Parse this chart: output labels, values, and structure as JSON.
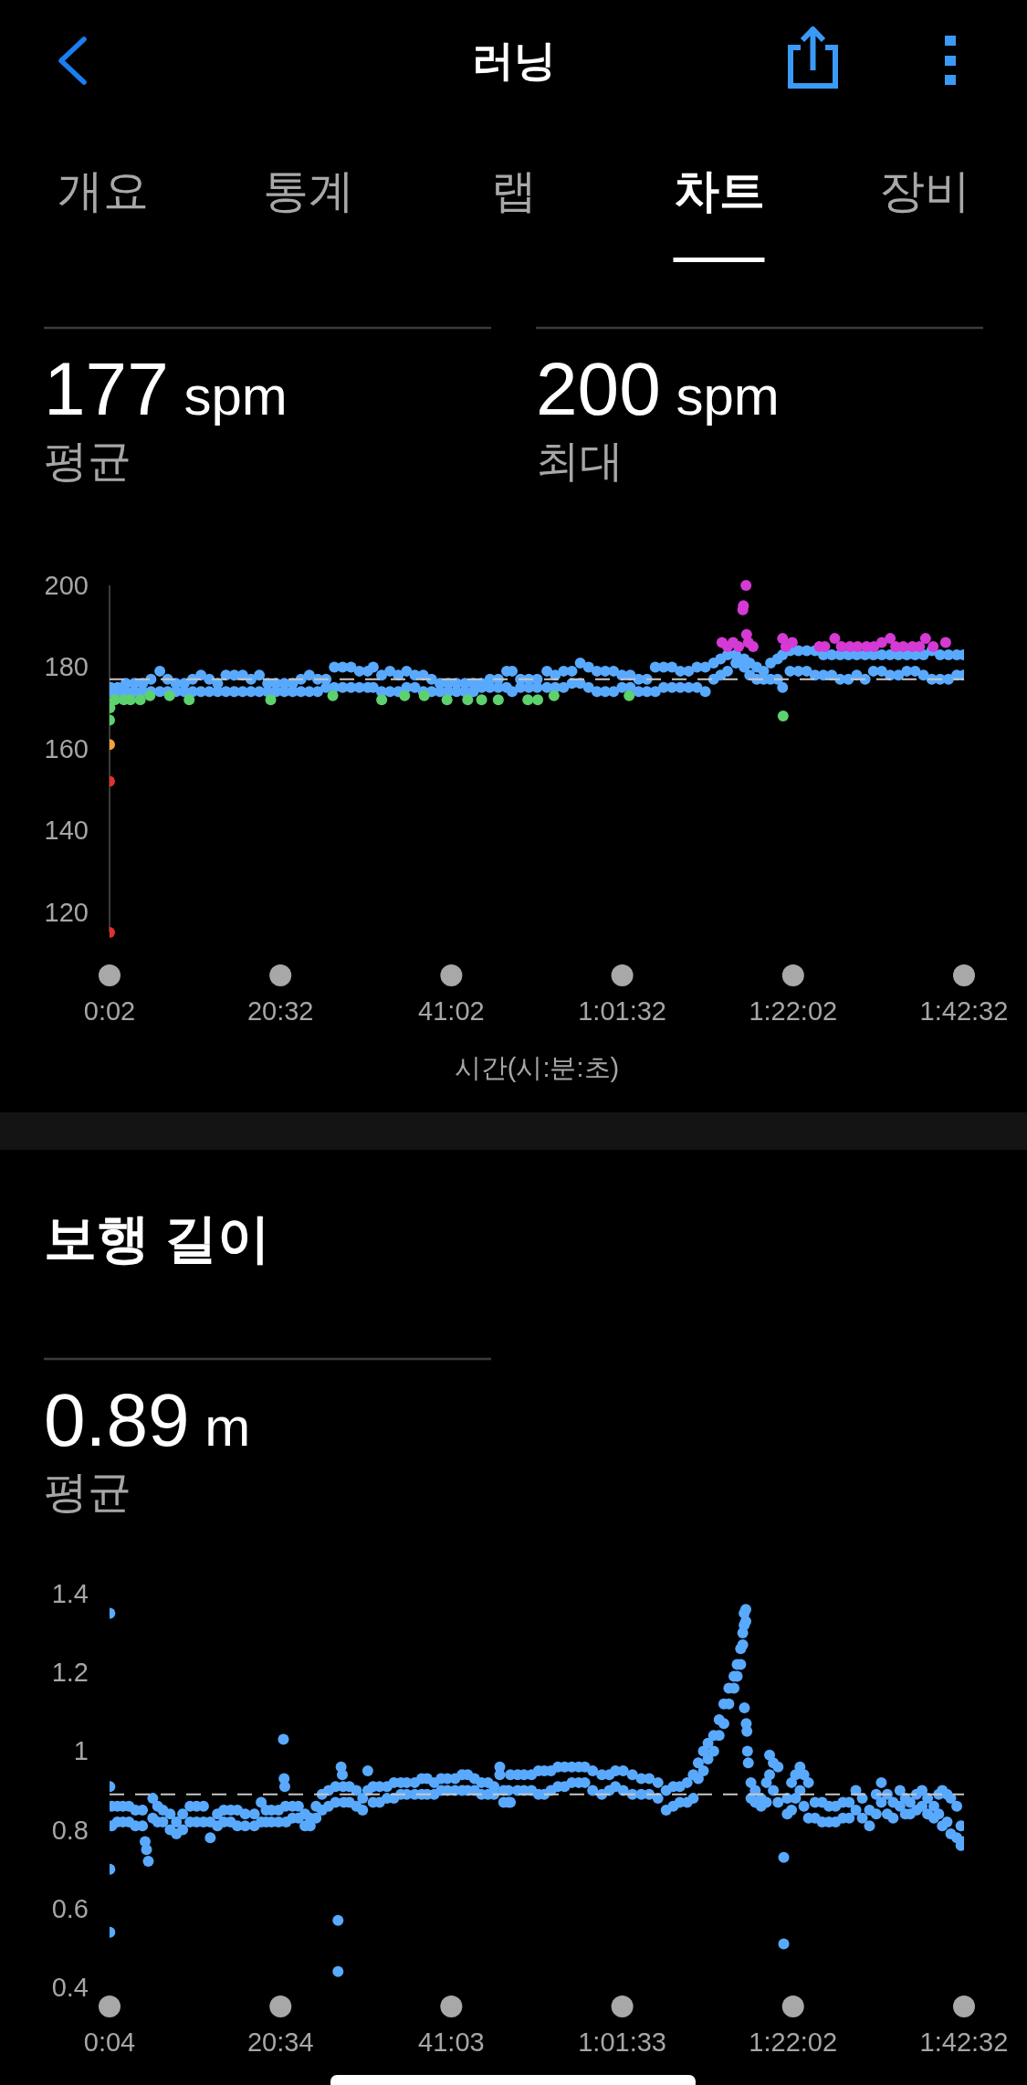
{
  "chart_data": [
    {
      "type": "other",
      "title": "러닝",
      "categories": [
        "개요",
        "통계",
        "랩",
        "차트",
        "장비"
      ],
      "colors": [
        "#a8a8a8",
        "#a8a8a8",
        "#a8a8a8",
        "#ffffff",
        "#a8a8a8"
      ]
    },
    {
      "type": "scatter",
      "xlabel": "시간(시:분:초)",
      "annotations": [
        "177 spm",
        "평균",
        "200 spm",
        "최대"
      ],
      "xlim": [
        2,
        6152
      ],
      "xticks": [
        {
          "value": 2,
          "label": "0:02"
        },
        {
          "value": 1232,
          "label": "20:32"
        },
        {
          "value": 2462,
          "label": "41:02"
        },
        {
          "value": 3692,
          "label": "1:01:32"
        },
        {
          "value": 4922,
          "label": "1:22:02"
        },
        {
          "value": 6152,
          "label": "1:42:32"
        }
      ],
      "ylim": [
        115,
        200
      ],
      "yticks": [
        120,
        140,
        160,
        180,
        200
      ],
      "marker": "circle",
      "ref_lines": [
        {
          "axis": "y",
          "value": 177,
          "color": "#c8c8c8",
          "line_style": "dashed"
        }
      ],
      "series": [
        {
          "color": "#e0312e",
          "x": [
            2,
            2
          ],
          "values": [
            152,
            115
          ]
        },
        {
          "color": "#f6a03c",
          "x": [
            2
          ],
          "values": [
            161
          ]
        },
        {
          "color": "#59aaff",
          "x": [
            10,
            10,
            60,
            60,
            120,
            120,
            180,
            180,
            240,
            240,
            300,
            300,
            364,
            364,
            420,
            420,
            480,
            480,
            540,
            540,
            600,
            600,
            660,
            660,
            720,
            720,
            780,
            780,
            840,
            840,
            900,
            900,
            960,
            960,
            1020,
            1020,
            1080,
            1080,
            1140,
            1140,
            1200,
            1200,
            1260,
            1260,
            1320,
            1320,
            1380,
            1380,
            1440,
            1440,
            1500,
            1500,
            1560,
            1560,
            1620,
            1620,
            1680,
            1680,
            1740,
            1740,
            1800,
            1800,
            1860,
            1860,
            1900,
            1900,
            1960,
            1960,
            2020,
            2020,
            2080,
            2080,
            2140,
            2140,
            2200,
            2200,
            2260,
            2260,
            2320,
            2320,
            2380,
            2380,
            2440,
            2440,
            2500,
            2500,
            2560,
            2560,
            2620,
            2620,
            2680,
            2680,
            2740,
            2740,
            2800,
            2800,
            2860,
            2860
          ],
          "values": [
            175,
            174,
            175,
            174,
            176,
            174,
            176,
            174,
            176,
            174,
            177,
            174,
            179,
            174,
            177,
            174,
            176,
            174,
            176,
            174,
            177,
            174,
            178,
            174,
            177,
            174,
            176,
            174,
            178,
            174,
            178,
            174,
            178,
            174,
            177,
            174,
            178,
            174,
            176,
            174,
            176,
            174,
            176,
            174,
            176,
            174,
            177,
            174,
            178,
            174,
            177,
            174,
            177,
            175,
            180,
            175,
            180,
            175,
            180,
            175,
            179,
            175,
            179,
            175,
            180,
            175,
            178,
            174,
            179,
            174,
            178,
            174,
            179,
            175,
            178,
            175,
            178,
            174,
            177,
            174,
            176,
            174,
            176,
            174,
            176,
            174,
            176,
            174,
            176,
            174,
            176,
            175,
            177,
            175,
            177,
            175,
            179,
            175
          ]
        },
        {
          "color": "#59aaff",
          "x": [
            2900,
            2900,
            2960,
            2960,
            3020,
            3020,
            3080,
            3080,
            3150,
            3150,
            3210,
            3210,
            3270,
            3270,
            3330,
            3330,
            3390,
            3390,
            3450,
            3450,
            3510,
            3510,
            3570,
            3570,
            3630,
            3630,
            3690,
            3690,
            3750,
            3750,
            3810,
            3810,
            3870,
            3870,
            3930,
            3930,
            3990,
            3990,
            4050,
            4050,
            4110,
            4110,
            4170,
            4170,
            4230,
            4230,
            4290,
            4290,
            4350,
            4350,
            4400,
            4400,
            4450,
            4450,
            4510,
            4510,
            4570,
            4570,
            4610,
            4610,
            4660,
            4660,
            4710,
            4710,
            4760,
            4760,
            4810,
            4810,
            4846,
            4846,
            4900,
            4900,
            4960,
            4960,
            5020,
            5020,
            5080,
            5080,
            5140,
            5140,
            5200,
            5200,
            5260,
            5260,
            5320,
            5320,
            5380,
            5380,
            5440,
            5440,
            5500,
            5500,
            5560,
            5560,
            5620,
            5620,
            5680,
            5680,
            5740,
            5740,
            5800,
            5800,
            5860,
            5860,
            5920,
            5920,
            5980,
            5980,
            6040,
            6040,
            6100,
            6100,
            6150,
            6150
          ],
          "values": [
            179,
            174,
            177,
            175,
            177,
            175,
            177,
            175,
            179,
            175,
            178,
            175,
            179,
            175,
            179,
            176,
            181,
            176,
            180,
            175,
            179,
            174,
            179,
            174,
            179,
            174,
            178,
            175,
            178,
            175,
            177,
            174,
            177,
            174,
            180,
            174,
            180,
            175,
            180,
            175,
            179,
            175,
            179,
            175,
            180,
            175,
            180,
            174,
            181,
            177,
            182,
            178,
            183,
            179,
            183,
            181,
            182,
            180,
            181,
            178,
            180,
            177,
            179,
            177,
            181,
            177,
            182,
            177,
            183,
            175,
            184,
            179,
            184,
            179,
            184,
            179,
            184,
            178,
            183,
            178,
            183,
            178,
            183,
            177,
            183,
            177,
            183,
            178,
            183,
            177,
            183,
            179,
            183,
            179,
            183,
            178,
            183,
            178,
            183,
            179,
            183,
            179,
            183,
            178,
            184,
            177,
            183,
            177,
            183,
            177,
            183,
            178,
            183,
            178
          ]
        },
        {
          "color": "#d53ad4",
          "x": [
            4410,
            4450,
            4490,
            4530,
            4560,
            4564,
            4583,
            4587,
            4600,
            4634,
            4846,
            4870,
            4916,
            5110,
            5150,
            5222,
            5269,
            5330,
            5386,
            5450,
            5504,
            5560,
            5621,
            5660,
            5715,
            5780,
            5832,
            5875,
            5930,
            6020
          ],
          "values": [
            186,
            185,
            186,
            185,
            194,
            195,
            200,
            188,
            186,
            185,
            187,
            185,
            186,
            185,
            185,
            187,
            185,
            185,
            185,
            185,
            185,
            186,
            187,
            185,
            185,
            185,
            185,
            187,
            185,
            186
          ]
        },
        {
          "color": "#5dd16e",
          "x": [
            2,
            5,
            40,
            105,
            152,
            223,
            293,
            434,
            575,
            1162,
            1609,
            1961,
            2126,
            2267,
            2431,
            2580,
            2680,
            2800,
            3013,
            3084,
            3201,
            3742,
            4850
          ],
          "values": [
            167,
            170,
            172,
            172,
            172,
            172,
            173,
            173,
            172,
            172,
            173,
            172,
            173,
            173,
            172,
            172,
            172,
            172,
            172,
            172,
            173,
            173,
            168
          ]
        }
      ]
    },
    {
      "type": "scatter",
      "title": "보행 길이",
      "annotations": [
        "0.89 m",
        "평균"
      ],
      "xlim": [
        4,
        6152
      ],
      "xticks": [
        {
          "value": 4,
          "label": "0:04"
        },
        {
          "value": 1234,
          "label": "20:34"
        },
        {
          "value": 2463,
          "label": "41:03"
        },
        {
          "value": 3693,
          "label": "1:01:33"
        },
        {
          "value": 4922,
          "label": "1:22:02"
        },
        {
          "value": 6152,
          "label": "1:42:32"
        }
      ],
      "ylim": [
        0.4,
        1.4
      ],
      "yticks": [
        0.4,
        0.6,
        0.8,
        1,
        1.2,
        1.4
      ],
      "marker": "circle",
      "ref_lines": [
        {
          "axis": "y",
          "value": 0.89,
          "color": "#c8c8c8",
          "line_style": "dashed"
        }
      ],
      "series": [
        {
          "color": "#59aaff",
          "x": [
            6,
            6,
            6,
            6,
            20,
            20,
            60,
            60,
            100,
            100,
            144,
            144,
            190,
            190,
            241,
            241,
            260,
            270,
            283,
            315,
            315,
            350,
            350,
            388,
            388,
            440,
            440,
            485,
            485,
            530,
            530,
            583,
            583,
            630,
            630,
            680,
            680,
            729,
            729,
            780,
            780,
            826,
            826,
            875,
            875,
            924,
            924,
            980,
            980,
            1046,
            1046,
            1095,
            1095,
            1130,
            1130,
            1168,
            1168,
            1220,
            1220,
            1255,
            1260,
            1265,
            1270,
            1275,
            1320,
            1320,
            1363,
            1363,
            1410,
            1410,
            1448,
            1448,
            1490,
            1490,
            1533,
            1533,
            1580,
            1580,
            1630,
            1630,
            1648,
            1648,
            1670,
            1679,
            1685,
            1690,
            1730,
            1730,
            1780,
            1780,
            1825,
            1825,
            1862,
            1862,
            1900,
            1900,
            1947,
            1947,
            2000,
            2000,
            2050,
            2050,
            2100,
            2100,
            2142,
            2142,
            2200,
            2200,
            2250,
            2250,
            2289,
            2289,
            2340,
            2340,
            2390,
            2390,
            2435,
            2435,
            2490,
            2490,
            2540,
            2540,
            2581,
            2581,
            2630,
            2630,
            2680,
            2680,
            2727,
            2727,
            2770,
            2770,
            2812,
            2812,
            2840,
            2840,
            2874,
            2874
          ],
          "values": [
            1.35,
            0.91,
            0.7,
            0.54,
            0.86,
            0.81,
            0.86,
            0.82,
            0.86,
            0.82,
            0.86,
            0.82,
            0.85,
            0.81,
            0.85,
            0.81,
            0.77,
            0.75,
            0.72,
            0.88,
            0.83,
            0.86,
            0.82,
            0.85,
            0.82,
            0.84,
            0.8,
            0.82,
            0.79,
            0.84,
            0.8,
            0.86,
            0.82,
            0.86,
            0.82,
            0.86,
            0.82,
            0.82,
            0.78,
            0.84,
            0.81,
            0.85,
            0.82,
            0.85,
            0.82,
            0.85,
            0.81,
            0.84,
            0.81,
            0.84,
            0.81,
            0.87,
            0.82,
            0.85,
            0.82,
            0.85,
            0.82,
            0.85,
            0.82,
            1.03,
            0.93,
            0.91,
            0.86,
            0.82,
            0.86,
            0.83,
            0.86,
            0.83,
            0.84,
            0.81,
            0.83,
            0.81,
            0.86,
            0.83,
            0.89,
            0.85,
            0.9,
            0.86,
            0.91,
            0.87,
            0.57,
            0.44,
            0.96,
            0.94,
            0.91,
            0.87,
            0.91,
            0.87,
            0.9,
            0.86,
            0.88,
            0.85,
            0.95,
            0.9,
            0.91,
            0.87,
            0.91,
            0.87,
            0.91,
            0.88,
            0.92,
            0.88,
            0.92,
            0.89,
            0.92,
            0.89,
            0.92,
            0.89,
            0.93,
            0.89,
            0.93,
            0.89,
            0.92,
            0.89,
            0.93,
            0.9,
            0.93,
            0.9,
            0.93,
            0.9,
            0.94,
            0.9,
            0.94,
            0.9,
            0.93,
            0.9,
            0.92,
            0.89,
            0.92,
            0.89,
            0.91,
            0.89,
            0.96,
            0.94,
            0.9,
            0.87,
            0.9,
            0.87
          ]
        },
        {
          "color": "#59aaff",
          "x": [
            2888,
            2888,
            2940,
            2940,
            2986,
            2986,
            3040,
            3040,
            3090,
            3090,
            3132,
            3132,
            3180,
            3180,
            3230,
            3230,
            3278,
            3278,
            3330,
            3330,
            3380,
            3380,
            3424,
            3424,
            3480,
            3480,
            3546,
            3546,
            3600,
            3600,
            3644,
            3644,
            3700,
            3700,
            3766,
            3766,
            3830,
            3830,
            3887,
            3887,
            3950,
            3950,
            4009,
            4009,
            4060,
            4060,
            4107,
            4107,
            4160,
            4160,
            4204,
            4204,
            4240,
            4240,
            4277,
            4277,
            4310,
            4310,
            4351,
            4351,
            4390,
            4390,
            4424,
            4424,
            4460,
            4460,
            4497,
            4497,
            4520,
            4520,
            4545,
            4545,
            4560,
            4560,
            4570,
            4570,
            4582,
            4582,
            4572,
            4585,
            4590,
            4594,
            4600
          ],
          "values": [
            0.94,
            0.87,
            0.94,
            0.9,
            0.94,
            0.9,
            0.94,
            0.9,
            0.95,
            0.89,
            0.95,
            0.89,
            0.95,
            0.9,
            0.96,
            0.91,
            0.96,
            0.91,
            0.96,
            0.92,
            0.96,
            0.92,
            0.96,
            0.92,
            0.95,
            0.9,
            0.94,
            0.89,
            0.94,
            0.9,
            0.95,
            0.91,
            0.95,
            0.9,
            0.94,
            0.89,
            0.93,
            0.89,
            0.93,
            0.89,
            0.92,
            0.88,
            0.9,
            0.85,
            0.91,
            0.86,
            0.91,
            0.87,
            0.92,
            0.87,
            0.94,
            0.88,
            0.97,
            0.93,
            1.0,
            0.95,
            1.02,
            0.98,
            1.04,
            1.0,
            1.08,
            1.04,
            1.12,
            1.07,
            1.16,
            1.12,
            1.19,
            1.16,
            1.22,
            1.19,
            1.26,
            1.22,
            1.3,
            1.27,
            1.35,
            1.32,
            1.36,
            1.33,
            1.11,
            1.07,
            1.05,
            1.0,
            0.97
          ]
        },
        {
          "color": "#59aaff",
          "x": [
            4619,
            4619,
            4650,
            4650,
            4692,
            4692,
            4730,
            4730,
            4753,
            4753,
            4780,
            4780,
            4814,
            4814,
            4855,
            4855,
            4880,
            4880,
            4911,
            4911,
            4940,
            4940,
            4972,
            4972,
            5000,
            5000,
            5033,
            5033,
            5080,
            5080,
            5131,
            5131,
            5180,
            5180,
            5228,
            5228,
            5280,
            5280,
            5326,
            5326,
            5374,
            5374,
            5420,
            5420,
            5472,
            5472,
            5520,
            5520,
            5557,
            5557,
            5600,
            5600,
            5642,
            5642,
            5691,
            5691,
            5730,
            5730,
            5764,
            5764,
            5810,
            5810,
            5850,
            5850,
            5890,
            5890,
            5935,
            5935,
            5970,
            5970,
            5996,
            5996,
            6030,
            6030,
            6057,
            6057,
            6100,
            6100,
            6130,
            6130,
            6150
          ],
          "values": [
            0.92,
            0.88,
            0.9,
            0.87,
            0.88,
            0.86,
            0.92,
            0.87,
            0.99,
            0.94,
            0.97,
            0.9,
            0.96,
            0.87,
            0.73,
            0.51,
            0.88,
            0.84,
            0.92,
            0.85,
            0.94,
            0.88,
            0.96,
            0.9,
            0.94,
            0.86,
            0.92,
            0.83,
            0.87,
            0.83,
            0.87,
            0.82,
            0.86,
            0.82,
            0.86,
            0.82,
            0.87,
            0.83,
            0.87,
            0.83,
            0.9,
            0.85,
            0.88,
            0.83,
            0.85,
            0.81,
            0.89,
            0.84,
            0.92,
            0.87,
            0.89,
            0.84,
            0.87,
            0.83,
            0.9,
            0.86,
            0.88,
            0.84,
            0.87,
            0.84,
            0.89,
            0.85,
            0.9,
            0.86,
            0.88,
            0.84,
            0.86,
            0.83,
            0.89,
            0.84,
            0.9,
            0.81,
            0.89,
            0.82,
            0.88,
            0.79,
            0.86,
            0.78,
            0.81,
            0.76,
            0.77
          ]
        }
      ]
    }
  ]
}
